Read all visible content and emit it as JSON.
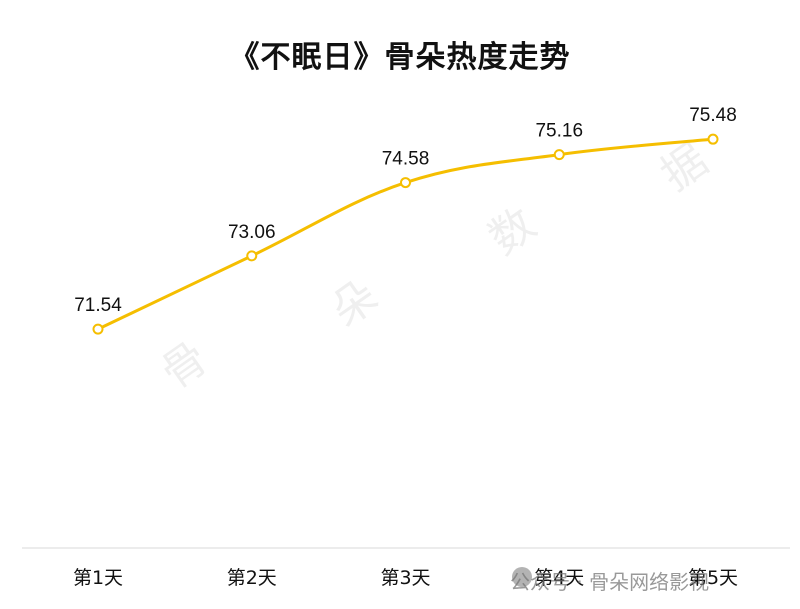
{
  "title": "《不眠日》骨朵热度走势",
  "watermark": {
    "chars": [
      "骨",
      "朵",
      "数",
      "据"
    ],
    "footer": "公众号 · 骨朵网络影视"
  },
  "colors": {
    "line": "#F5BE00",
    "axis": "#d8d8d8",
    "label": "#111111"
  },
  "chart_data": {
    "type": "line",
    "title": "《不眠日》骨朵热度走势",
    "categories": [
      "第1天",
      "第2天",
      "第3天",
      "第4天",
      "第5天"
    ],
    "values": [
      71.54,
      73.06,
      74.58,
      75.16,
      75.48
    ],
    "ylim": [
      67,
      76.5
    ],
    "grid": false,
    "legend": "none",
    "data_labels": true
  }
}
